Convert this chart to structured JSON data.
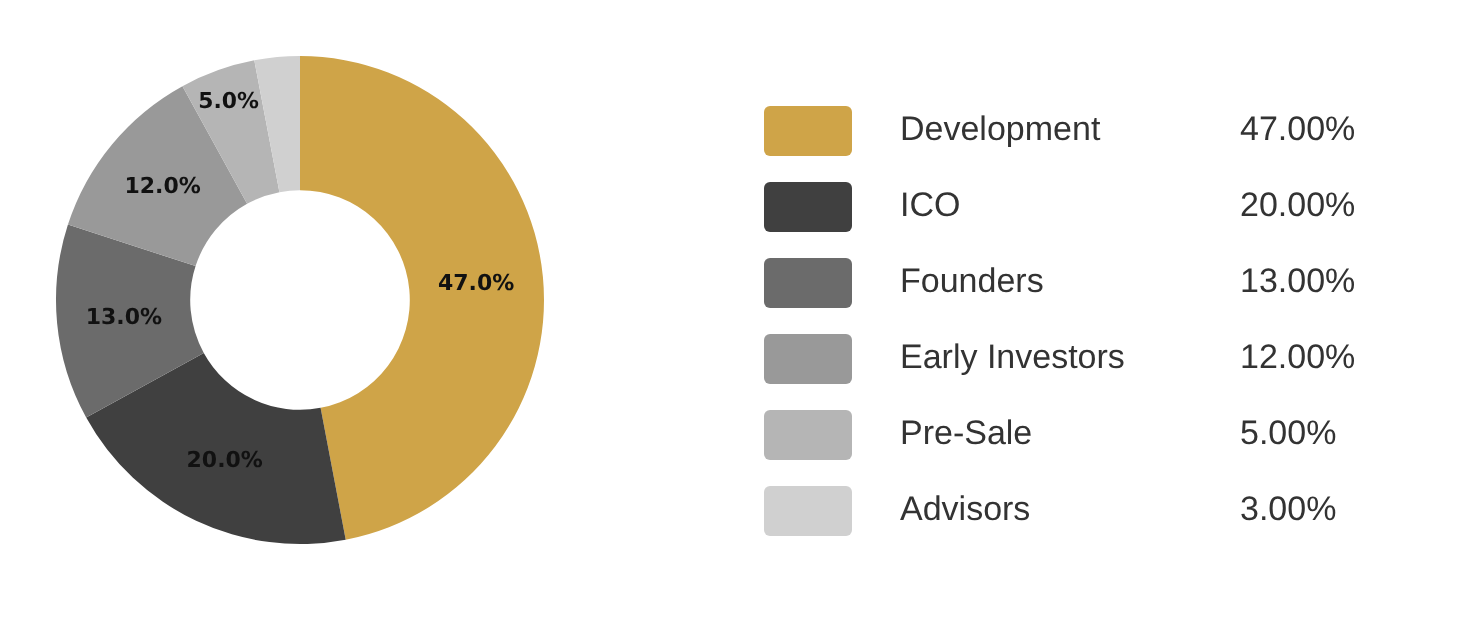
{
  "chart_data": {
    "type": "donut",
    "categories": [
      "Development",
      "ICO",
      "Founders",
      "Early Investors",
      "Pre-Sale",
      "Advisors"
    ],
    "values": [
      47,
      20,
      13,
      12,
      5,
      3
    ],
    "colors": [
      "#cfa448",
      "#404040",
      "#6b6b6b",
      "#999999",
      "#b5b5b5",
      "#d0d0d0"
    ],
    "value_labels": [
      "47.0%",
      "20.0%",
      "13.0%",
      "12.0%",
      "5.0%",
      null
    ],
    "annotations": [
      "47.00%",
      "20.00%",
      "13.00%",
      "12.00%",
      "5.00%",
      "3.00%"
    ],
    "legend": "right"
  }
}
